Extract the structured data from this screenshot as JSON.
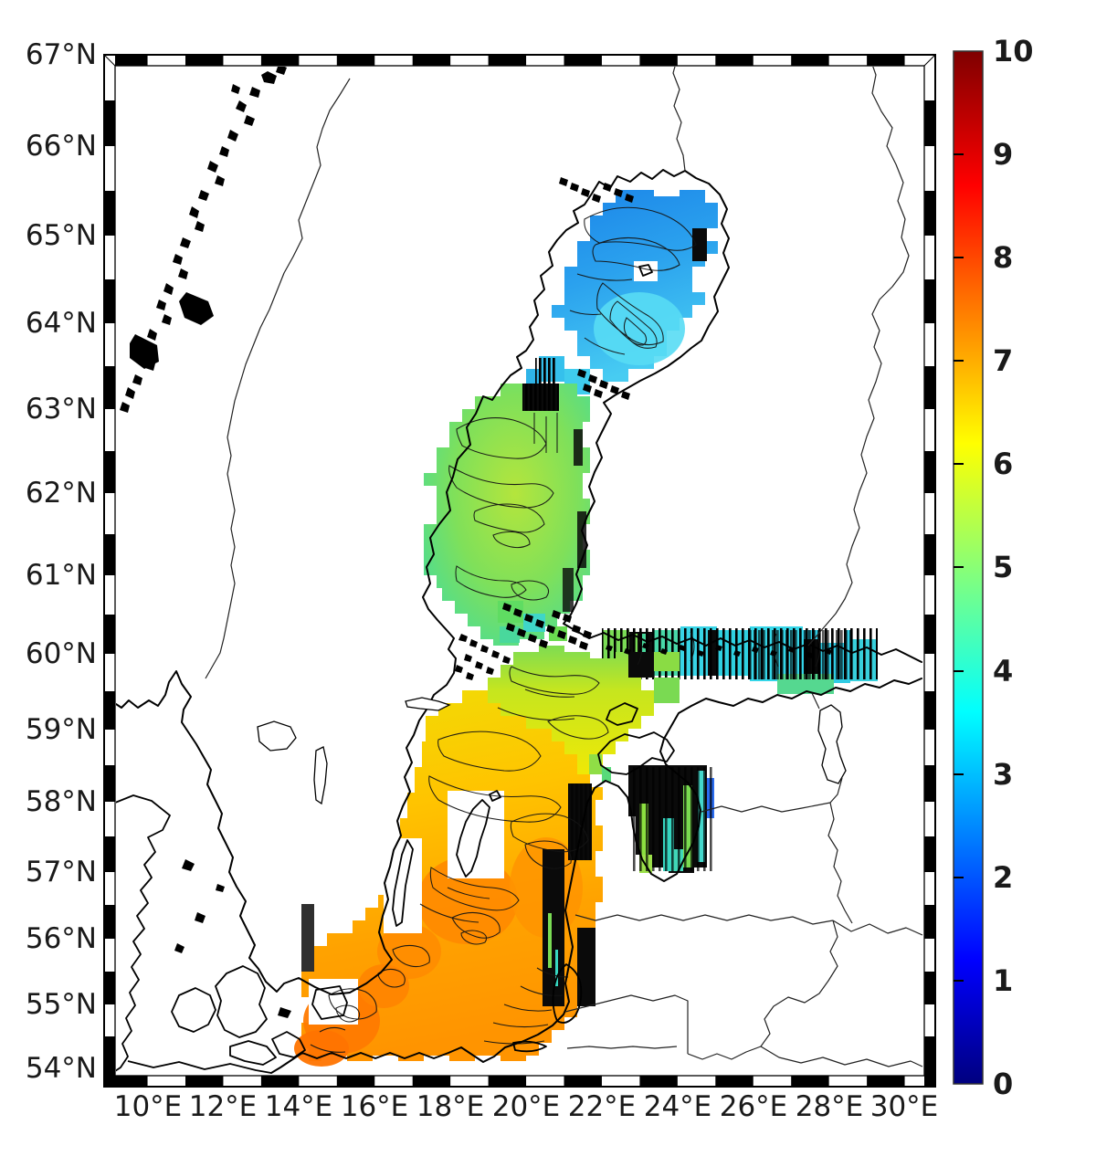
{
  "figure": {
    "description": "Filled contour map of a scalar field (range 0-10, jet colormap) over the Baltic Sea with coastlines, country borders and a checkered map frame",
    "region_shown": "Baltic Sea: Gulf of Bothnia, Gulf of Finland, Gulf of Riga, Baltic Proper, with Scandinavia, Finland, Baltic states, Denmark and Poland coastlines"
  },
  "axes": {
    "lat_ticks": [
      "67°N",
      "66°N",
      "65°N",
      "64°N",
      "63°N",
      "62°N",
      "61°N",
      "60°N",
      "59°N",
      "58°N",
      "57°N",
      "56°N",
      "55°N",
      "54°N"
    ],
    "lon_ticks": [
      "10°E",
      "12°E",
      "14°E",
      "16°E",
      "18°E",
      "20°E",
      "22°E",
      "24°E",
      "26°E",
      "28°E",
      "30°E"
    ]
  },
  "colorbar": {
    "tick_labels": [
      "10",
      "9",
      "8",
      "7",
      "6",
      "5",
      "4",
      "3",
      "2",
      "1",
      "0"
    ],
    "min": 0,
    "max": 10,
    "colormap": "jet"
  },
  "chart_data": {
    "type": "heatmap",
    "subtype": "filled-contour-map-with-coastlines",
    "title": "",
    "xlabel": "",
    "ylabel": "",
    "x_ticks": [
      "10°E",
      "12°E",
      "14°E",
      "16°E",
      "18°E",
      "20°E",
      "22°E",
      "24°E",
      "26°E",
      "28°E",
      "30°E"
    ],
    "y_ticks": [
      "67°N",
      "66°N",
      "65°N",
      "64°N",
      "63°N",
      "62°N",
      "61°N",
      "60°N",
      "59°N",
      "58°N",
      "57°N",
      "56°N",
      "55°N",
      "54°N"
    ],
    "x_range_deg_e": [
      8.9,
      30.8
    ],
    "y_range_deg_n": [
      54,
      67
    ],
    "grid": false,
    "legend_position": "colorbar-right",
    "colorbar": {
      "min": 0,
      "max": 10,
      "tick_step": 1,
      "colormap": "jet",
      "colormap_stops": [
        "#00007F",
        "#0000FF",
        "#00FFFF",
        "#FFFF00",
        "#FF0000",
        "#7F0000"
      ]
    },
    "series": [
      {
        "name": "Bothnian Bay (~63.8-65.6N, 21-25E)",
        "value_range": [
          2.5,
          3.5
        ],
        "fill": "blue with cyan core, black contour lines"
      },
      {
        "name": "Quark transition (~63-63.5N)",
        "value_range": [
          3.5,
          4.5
        ],
        "fill": "cyan cells with dense dark contours"
      },
      {
        "name": "Bothnian Sea (~60.5-63.5N, 17-21.5E)",
        "value_range": [
          4.5,
          5.5
        ],
        "fill": "green with yellow-green core"
      },
      {
        "name": "Archipelago Sea / Aland (~59.8-60.5N)",
        "value_range": [
          5,
          6
        ],
        "fill": "green and cyan cells among islands"
      },
      {
        "name": "Gulf of Finland (~59.3-60.3N, 22.5-29.5E)",
        "value_range": [
          3.5,
          5
        ],
        "fill": "cyan/green blocks with dense vertical black striping"
      },
      {
        "name": "Northern Baltic Proper (~58.5-59.8N)",
        "value_range": [
          6,
          6.5
        ],
        "fill": "yellow, green along its north edge"
      },
      {
        "name": "Gulf of Riga (~57-58.3N, 22.3-24.3E)",
        "value_range": [
          0,
          5
        ],
        "fill": "nearly black noisy patch with green/cyan/blue stripes"
      },
      {
        "name": "Central Baltic, Gotland Basin (~56-58.5N)",
        "value_range": [
          6.5,
          7.5
        ],
        "fill": "yellow-orange with orange maxima"
      },
      {
        "name": "SW Baltic, Bornholm & Arkona basins (~54.3-56N)",
        "value_range": [
          7,
          8
        ],
        "fill": "orange with deep-orange maxima"
      }
    ],
    "annotations": "Dense black bands of crowded contour lines along the eastern data edge near 21.5E (57-59.5N) and in the Gulf of Riga / Gulf of Finland; islands (Gotland, Oland, Bornholm, Saaremaa) and land are white"
  },
  "frame": {
    "style": "checkered black/white neatline, 1-degree segments on top/bottom, 0.5-degree segments on left/right"
  }
}
